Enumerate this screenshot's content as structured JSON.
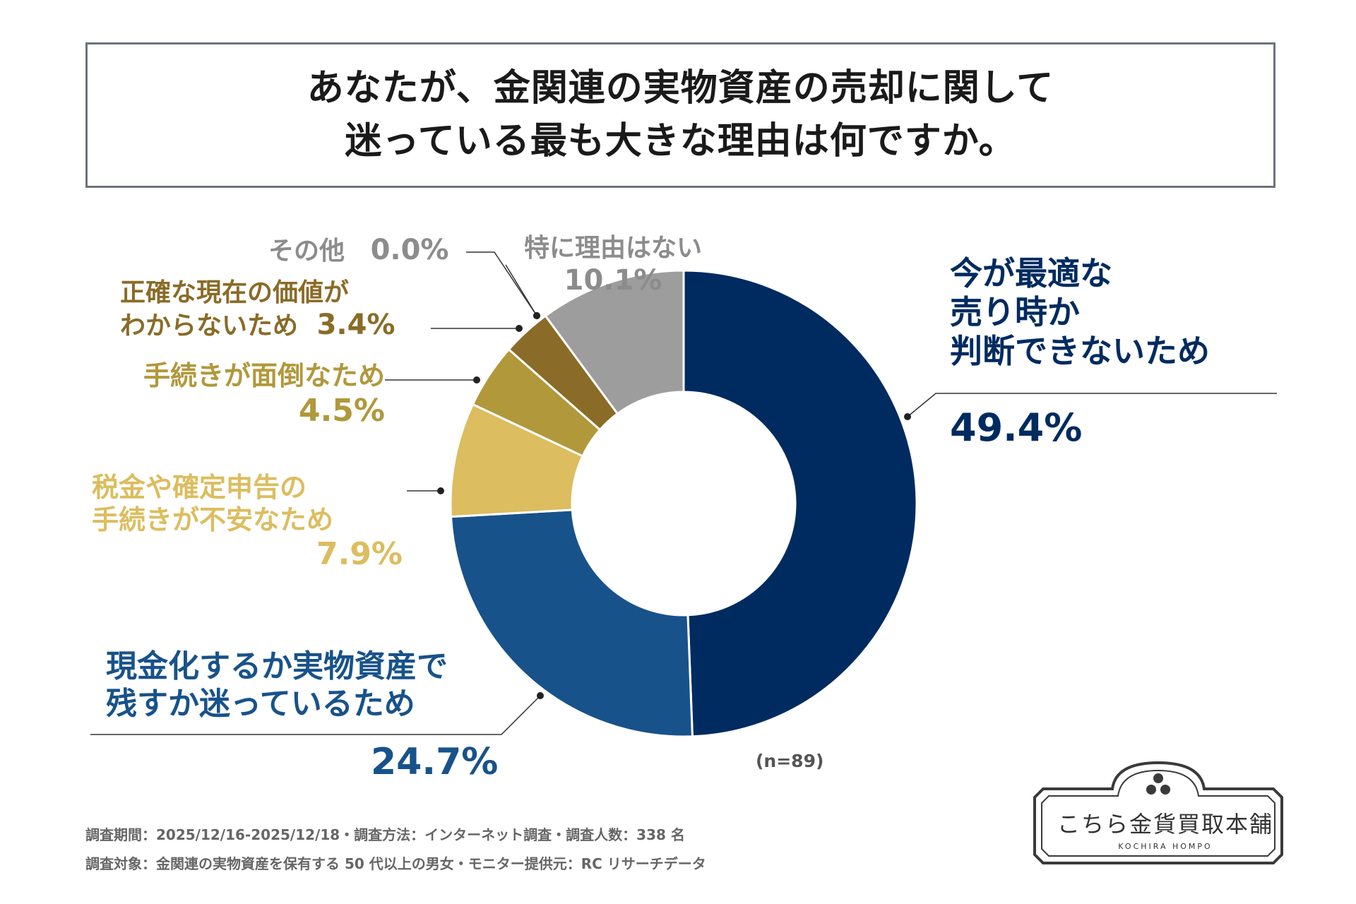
{
  "title": {
    "line1": "あなたが、金関連の実物資産の売却に関して",
    "line2": "迷っている最も大きな理由は何ですか。"
  },
  "chart_data": {
    "type": "pie",
    "categories": [
      "今が最適な売り時か判断できないため",
      "現金化するか実物資産で残すか迷っているため",
      "税金や確定申告の手続きが不安なため",
      "手続きが面倒なため",
      "正確な現在の価値がわからないため",
      "その他",
      "特に理由はない"
    ],
    "values": [
      49.4,
      24.7,
      7.9,
      4.5,
      3.4,
      0.0,
      10.1
    ],
    "colors": [
      "#002b60",
      "#18528a",
      "#dcbd5f",
      "#b1983b",
      "#8a6b27",
      "#999999",
      "#9d9d9d"
    ],
    "labels": [
      {
        "lines": [
          "今が最適な",
          "売り時か",
          "判断できないため"
        ],
        "value": "49.4%"
      },
      {
        "lines": [
          "現金化するか実物資産で",
          "残すか迷っているため"
        ],
        "value": "24.7%"
      },
      {
        "lines": [
          "税金や確定申告の",
          "手続きが不安なため"
        ],
        "value": "7.9%"
      },
      {
        "lines": [
          "手続きが面倒なため"
        ],
        "value": "4.5%"
      },
      {
        "lines": [
          "正確な現在の価値が",
          "わからないため"
        ],
        "value": "3.4%"
      },
      {
        "lines": [
          "その他"
        ],
        "value": "0.0%"
      },
      {
        "lines": [
          "特に理由はない"
        ],
        "value": "10.1%"
      }
    ],
    "sample": "(n=89)"
  },
  "notes": {
    "line1": "調査期間：2025/12/16-2025/12/18・調査方法：インターネット調査・調査人数：338 名",
    "line2": "調査対象：金関連の実物資産を保有する 50 代以上の男女・モニター提供元：RC リサーチデータ"
  },
  "logo": {
    "name": "こちら金貨買取本舗",
    "sub": "KOCHIRA HOMPO"
  }
}
